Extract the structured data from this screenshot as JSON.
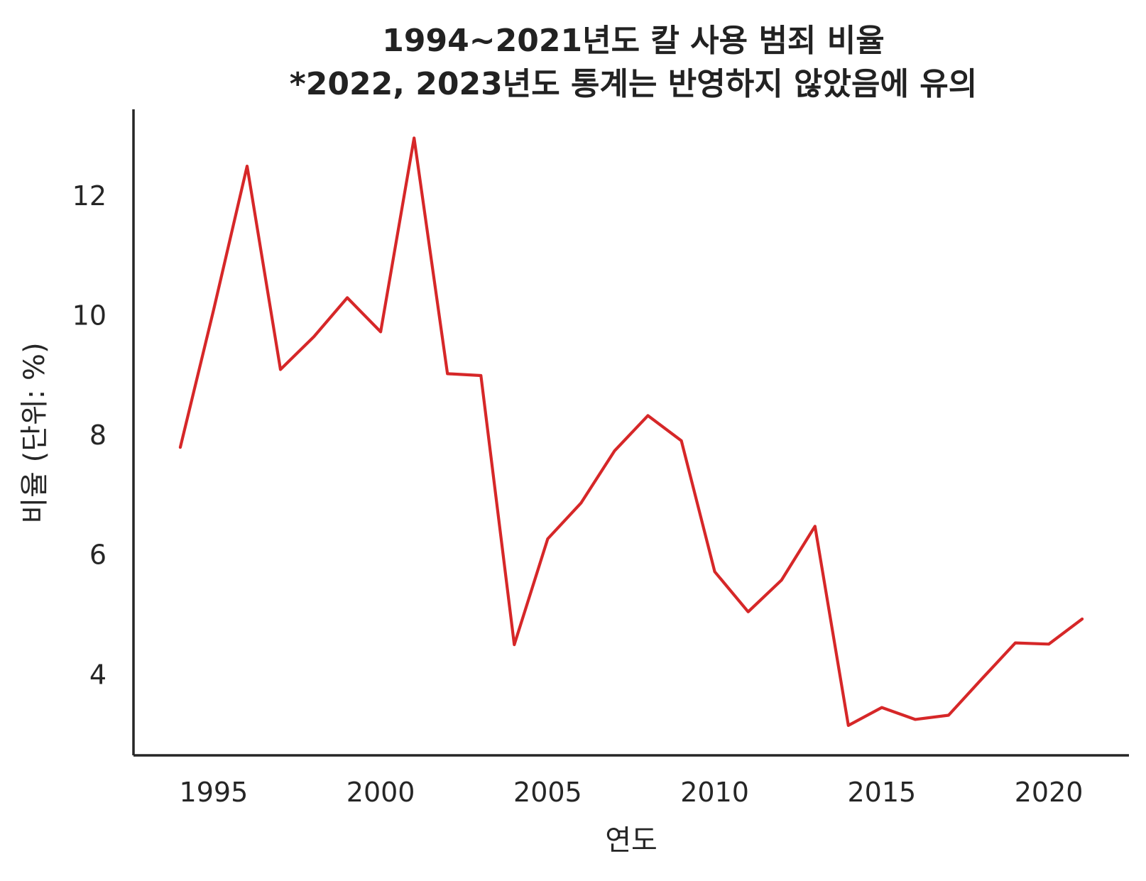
{
  "chart_data": {
    "type": "line",
    "title": "1994~2021년도 칼 사용 범죄 비율",
    "subtitle": "*2022, 2023년도 통계는 반영하지 않았음에 유의",
    "xlabel": "연도",
    "ylabel": "비율 (단위: %)",
    "xlim": [
      1992.6,
      2022.4
    ],
    "ylim": [
      2.65,
      13.45
    ],
    "xticks": [
      1995,
      2000,
      2005,
      2010,
      2015,
      2020
    ],
    "yticks": [
      4,
      6,
      8,
      10,
      12
    ],
    "grid": false,
    "line_color": "#d62728",
    "series": [
      {
        "x": [
          1994,
          1995,
          1996,
          1997,
          1998,
          1999,
          2000,
          2001,
          2002,
          2003,
          2004,
          2005,
          2006,
          2007,
          2008,
          2009,
          2010,
          2011,
          2012,
          2013,
          2014,
          2015,
          2016,
          2017,
          2018,
          2019,
          2020,
          2021
        ],
        "y": [
          7.8,
          10.1,
          12.5,
          9.1,
          9.65,
          10.3,
          9.73,
          12.97,
          9.03,
          9.0,
          4.5,
          6.27,
          6.87,
          7.74,
          8.33,
          7.91,
          5.72,
          5.05,
          5.58,
          6.48,
          3.15,
          3.45,
          3.25,
          3.32,
          3.93,
          4.53,
          4.51,
          4.93
        ]
      }
    ]
  }
}
